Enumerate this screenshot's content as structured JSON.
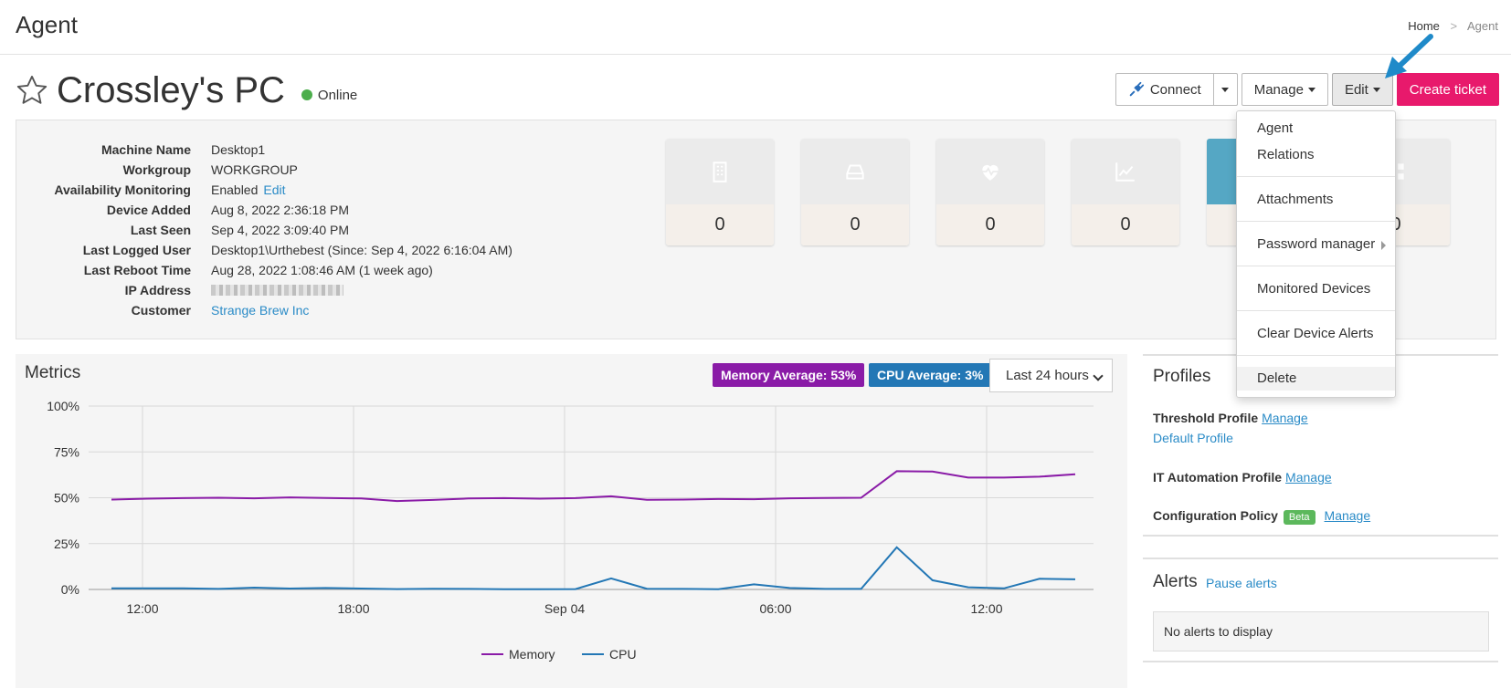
{
  "header": {
    "app_title": "Agent",
    "breadcrumb": {
      "home": "Home",
      "separator": ">",
      "current": "Agent"
    }
  },
  "device": {
    "name": "Crossley's PC",
    "status": "Online",
    "status_color": "#4cae4c"
  },
  "toolbar": {
    "connect_label": "Connect",
    "manage_label": "Manage",
    "edit_label": "Edit",
    "create_ticket_label": "Create ticket"
  },
  "info": [
    {
      "label": "Machine Name",
      "value": "Desktop1"
    },
    {
      "label": "Workgroup",
      "value": "WORKGROUP"
    },
    {
      "label": "Availability Monitoring",
      "value": "Enabled",
      "link": "Edit"
    },
    {
      "label": "Device Added",
      "value": "Aug 8, 2022 2:36:18 PM"
    },
    {
      "label": "Last Seen",
      "value": "Sep 4, 2022 3:09:40 PM"
    },
    {
      "label": "Last Logged User",
      "value": "Desktop1\\Urthebest (Since: Sep 4, 2022 6:16:04 AM)"
    },
    {
      "label": "Last Reboot Time",
      "value": "Aug 28, 2022 1:08:46 AM (1 week ago)"
    },
    {
      "label": "IP Address",
      "value": ""
    },
    {
      "label": "Customer",
      "link": "Strange Brew Inc"
    }
  ],
  "tiles": [
    {
      "icon": "building-icon",
      "value": "0"
    },
    {
      "icon": "drive-icon",
      "value": "0"
    },
    {
      "icon": "heartbeat-icon",
      "value": "0"
    },
    {
      "icon": "chart-line-icon",
      "value": "0"
    },
    {
      "icon": "blank-icon",
      "value": ""
    },
    {
      "icon": "grid-icon",
      "value": "0"
    }
  ],
  "edit_menu": {
    "items": [
      "Agent",
      "Relations",
      "Attachments",
      "Password manager",
      "Monitored Devices",
      "Clear Device Alerts",
      "Delete"
    ]
  },
  "metrics": {
    "title": "Metrics",
    "memory_badge": "Memory Average: 53%",
    "cpu_badge": "CPU Average: 3%",
    "range": "Last 24 hours"
  },
  "chart_data": {
    "type": "line",
    "y_ticks": [
      "100%",
      "75%",
      "50%",
      "25%",
      "0%"
    ],
    "ylim": [
      0,
      100
    ],
    "x_ticks": [
      "12:00",
      "18:00",
      "Sep 04",
      "06:00",
      "12:00"
    ],
    "series": [
      {
        "name": "Memory",
        "color": "#8a1ba7",
        "values": [
          49,
          49.5,
          49.8,
          50,
          49.7,
          50.2,
          49.9,
          49.6,
          48.2,
          48.8,
          49.6,
          49.8,
          49.5,
          49.8,
          50.8,
          48.9,
          49,
          49.3,
          49.2,
          49.7,
          49.9,
          50,
          64.5,
          64.3,
          61,
          61,
          61.5,
          62.8
        ]
      },
      {
        "name": "CPU",
        "color": "#2377b5",
        "values": [
          0.6,
          0.6,
          0.6,
          0.3,
          1,
          0.5,
          0.8,
          0.5,
          0.2,
          0.4,
          0.3,
          0.1,
          0.1,
          0.2,
          6,
          0.4,
          0.3,
          0.1,
          2.8,
          0.8,
          0.3,
          0.3,
          23,
          5,
          1.2,
          0.6,
          5.8,
          5.5
        ]
      }
    ]
  },
  "profiles": {
    "title": "Profiles",
    "threshold_label": "Threshold Profile",
    "threshold_value": "Default Profile",
    "it_auto_label": "IT Automation Profile",
    "config_label": "Configuration Policy",
    "beta": "Beta",
    "manage": "Manage"
  },
  "alerts": {
    "title": "Alerts",
    "pause": "Pause alerts",
    "empty": "No alerts to display"
  }
}
